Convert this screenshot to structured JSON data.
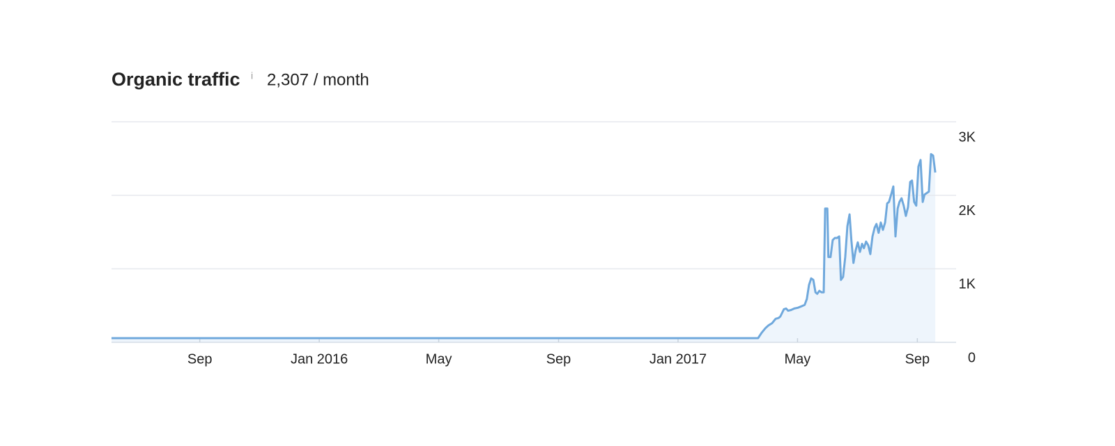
{
  "chart_data": {
    "type": "line",
    "title": "Organic traffic",
    "info": "i",
    "subtitle": "2,307 / month",
    "color": "#6fa8dc",
    "area_color": "#eef5fc",
    "grid": true,
    "xlim": [
      2015.421,
      2017.775
    ],
    "xticks": [
      {
        "value": 2015.667,
        "label": "Sep"
      },
      {
        "value": 2016.0,
        "label": "Jan 2016"
      },
      {
        "value": 2016.333,
        "label": "May"
      },
      {
        "value": 2016.667,
        "label": "Sep"
      },
      {
        "value": 2017.0,
        "label": "Jan 2017"
      },
      {
        "value": 2017.333,
        "label": "May"
      },
      {
        "value": 2017.667,
        "label": "Sep"
      }
    ],
    "ylim": [
      0,
      3000
    ],
    "yticks": [
      0,
      {
        "value": 1000,
        "label": "1K"
      },
      {
        "value": 2000,
        "label": "2K"
      },
      {
        "value": 3000,
        "label": "3K"
      }
    ],
    "x": [
      2015.421,
      2017.223,
      2017.233,
      2017.243,
      2017.252,
      2017.262,
      2017.272,
      2017.28,
      2017.285,
      2017.295,
      2017.301,
      2017.307,
      2017.315,
      2017.324,
      2017.334,
      2017.344,
      2017.353,
      2017.359,
      2017.365,
      2017.371,
      2017.377,
      2017.383,
      2017.388,
      2017.394,
      2017.4,
      2017.406,
      2017.41,
      2017.416,
      2017.419,
      2017.425,
      2017.431,
      2017.437,
      2017.443,
      2017.449,
      2017.454,
      2017.46,
      2017.466,
      2017.472,
      2017.478,
      2017.483,
      2017.489,
      2017.495,
      2017.501,
      2017.507,
      2017.513,
      2017.518,
      2017.524,
      2017.53,
      2017.536,
      2017.542,
      2017.548,
      2017.553,
      2017.559,
      2017.565,
      2017.571,
      2017.577,
      2017.583,
      2017.588,
      2017.594,
      2017.6,
      2017.606,
      2017.612,
      2017.617,
      2017.623,
      2017.629,
      2017.635,
      2017.641,
      2017.647,
      2017.652,
      2017.658,
      2017.664,
      2017.67,
      2017.676,
      2017.682,
      2017.687,
      2017.693,
      2017.699,
      2017.705,
      2017.711,
      2017.717
    ],
    "values": [
      57,
      57,
      130,
      190,
      230,
      260,
      320,
      330,
      350,
      450,
      460,
      430,
      440,
      460,
      470,
      490,
      510,
      590,
      780,
      870,
      850,
      680,
      660,
      700,
      680,
      680,
      1820,
      1820,
      1160,
      1160,
      1390,
      1420,
      1420,
      1440,
      850,
      890,
      1160,
      1580,
      1740,
      1390,
      1080,
      1250,
      1360,
      1230,
      1340,
      1280,
      1370,
      1320,
      1200,
      1440,
      1560,
      1610,
      1490,
      1630,
      1530,
      1630,
      1890,
      1910,
      2010,
      2120,
      1440,
      1820,
      1910,
      1960,
      1860,
      1720,
      1840,
      2180,
      2200,
      1910,
      1860,
      2390,
      2480,
      1910,
      2010,
      2030,
      2050,
      2560,
      2540,
      2310
    ]
  }
}
